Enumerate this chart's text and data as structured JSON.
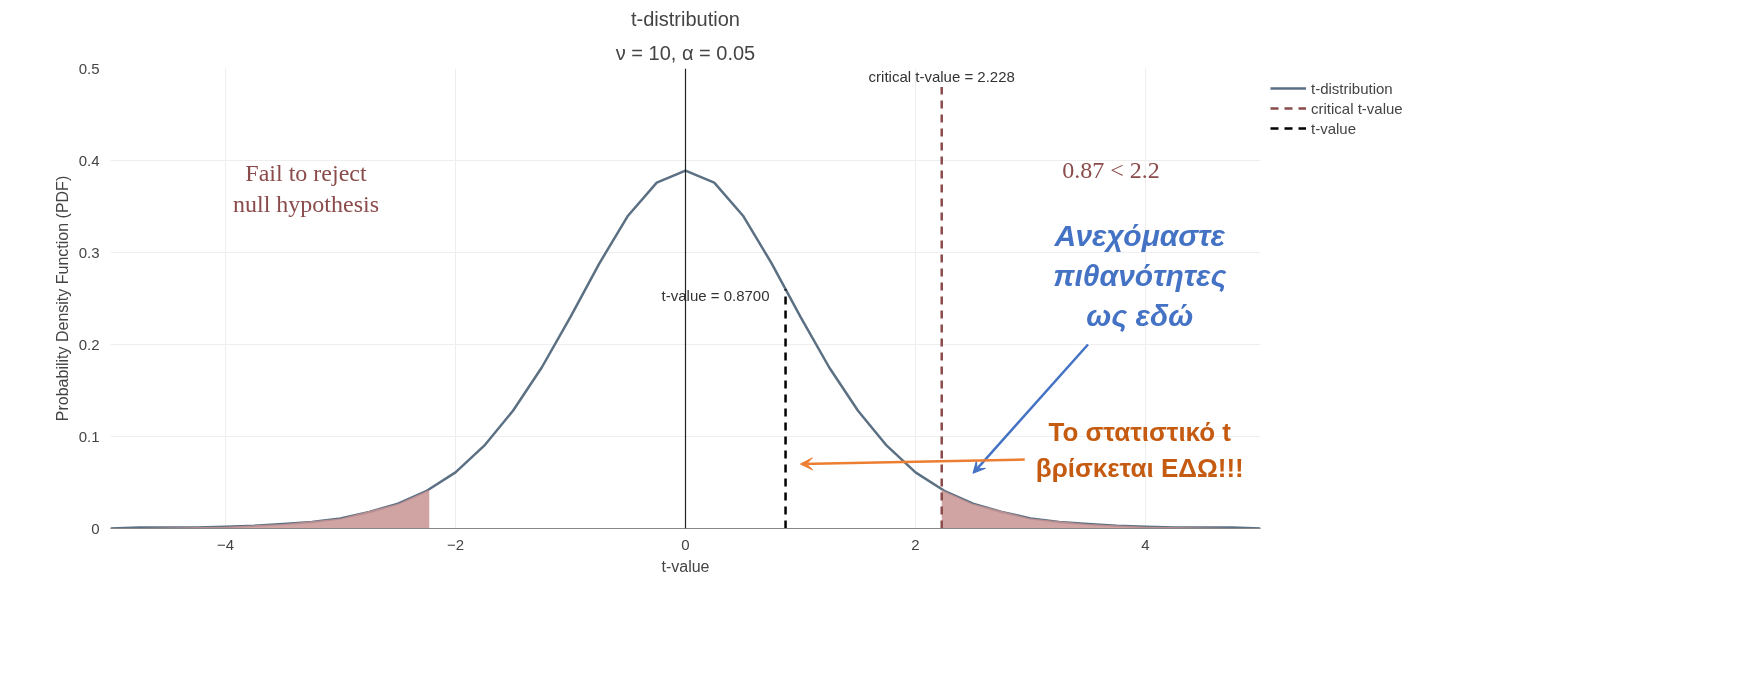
{
  "chart_data": {
    "type": "line",
    "title": "t-distribution",
    "subtitle": "ν = 10, α = 0.05",
    "xlabel": "t-value",
    "ylabel": "Probability Density Function (PDF)",
    "xlim": [
      -5,
      5
    ],
    "xticks": [
      {
        "value": -4,
        "label": "−4"
      },
      {
        "value": -2,
        "label": "−2"
      },
      0,
      2,
      4
    ],
    "ylim": [
      0,
      0.5
    ],
    "yticks": [
      0,
      0.1,
      0.2,
      0.3,
      0.4,
      0.5
    ],
    "grid": true,
    "legend": "top right",
    "series": [
      {
        "name": "t-distribution",
        "type": "line",
        "color": "#5b7083",
        "x": [
          -5,
          -4.75,
          -4.5,
          -4.25,
          -4,
          -3.75,
          -3.5,
          -3.25,
          -3,
          -2.75,
          -2.5,
          -2.25,
          -2,
          -1.75,
          -1.5,
          -1.25,
          -1,
          -0.75,
          -0.5,
          -0.25,
          0,
          0.25,
          0.5,
          0.75,
          1,
          1.25,
          1.5,
          1.75,
          2,
          2.25,
          2.5,
          2.75,
          3,
          3.25,
          3.5,
          3.75,
          4,
          4.25,
          4.5,
          4.75,
          5
        ],
        "values": [
          0,
          0.001,
          0.001,
          0.001,
          0.002,
          0.003,
          0.005,
          0.007,
          0.011,
          0.018,
          0.027,
          0.041,
          0.061,
          0.09,
          0.128,
          0.175,
          0.23,
          0.288,
          0.34,
          0.376,
          0.389,
          0.376,
          0.34,
          0.288,
          0.23,
          0.175,
          0.128,
          0.09,
          0.061,
          0.041,
          0.027,
          0.018,
          0.011,
          0.007,
          0.005,
          0.003,
          0.002,
          0.001,
          0.001,
          0.001,
          0
        ]
      },
      {
        "type": "area",
        "color": "#c99494",
        "x": [
          -5,
          -4.5,
          -4,
          -3.5,
          -3,
          -2.5,
          -2.228
        ],
        "values": [
          0,
          0.001,
          0.002,
          0.005,
          0.011,
          0.027,
          0.042
        ]
      },
      {
        "type": "area",
        "color": "#c99494",
        "x": [
          2.228,
          2.5,
          3,
          3.5,
          4,
          4.5,
          5
        ],
        "values": [
          0.042,
          0.027,
          0.011,
          0.005,
          0.002,
          0.001,
          0
        ]
      },
      {
        "name": "critical t-value",
        "type": "line",
        "line_style": "dashed",
        "color": "#8b4b4b",
        "x": [
          2.228,
          2.228
        ],
        "values": [
          0,
          0.48
        ]
      },
      {
        "name": "t-value",
        "type": "line",
        "line_style": "dashed",
        "color": "#000000",
        "x": [
          0.87,
          0.87
        ],
        "values": [
          0,
          0.26
        ]
      }
    ],
    "ref_lines": [
      {
        "axis": "x",
        "value": 0,
        "color": "#222222"
      }
    ],
    "annotations": [
      {
        "text": "critical t-value = 2.228",
        "x": 2.228,
        "y": 0.48
      },
      {
        "text": "t-value = 0.8700",
        "x": 0.87,
        "y": 0.26
      },
      "Fail to reject\nnull hypothesis",
      "0.87 < 2.2",
      "Ανεχόμαστε\nπιθανότητες\nως εδώ",
      "Το στατιστικό t\nβρίσκεται ΕΔΩ!!!"
    ]
  }
}
